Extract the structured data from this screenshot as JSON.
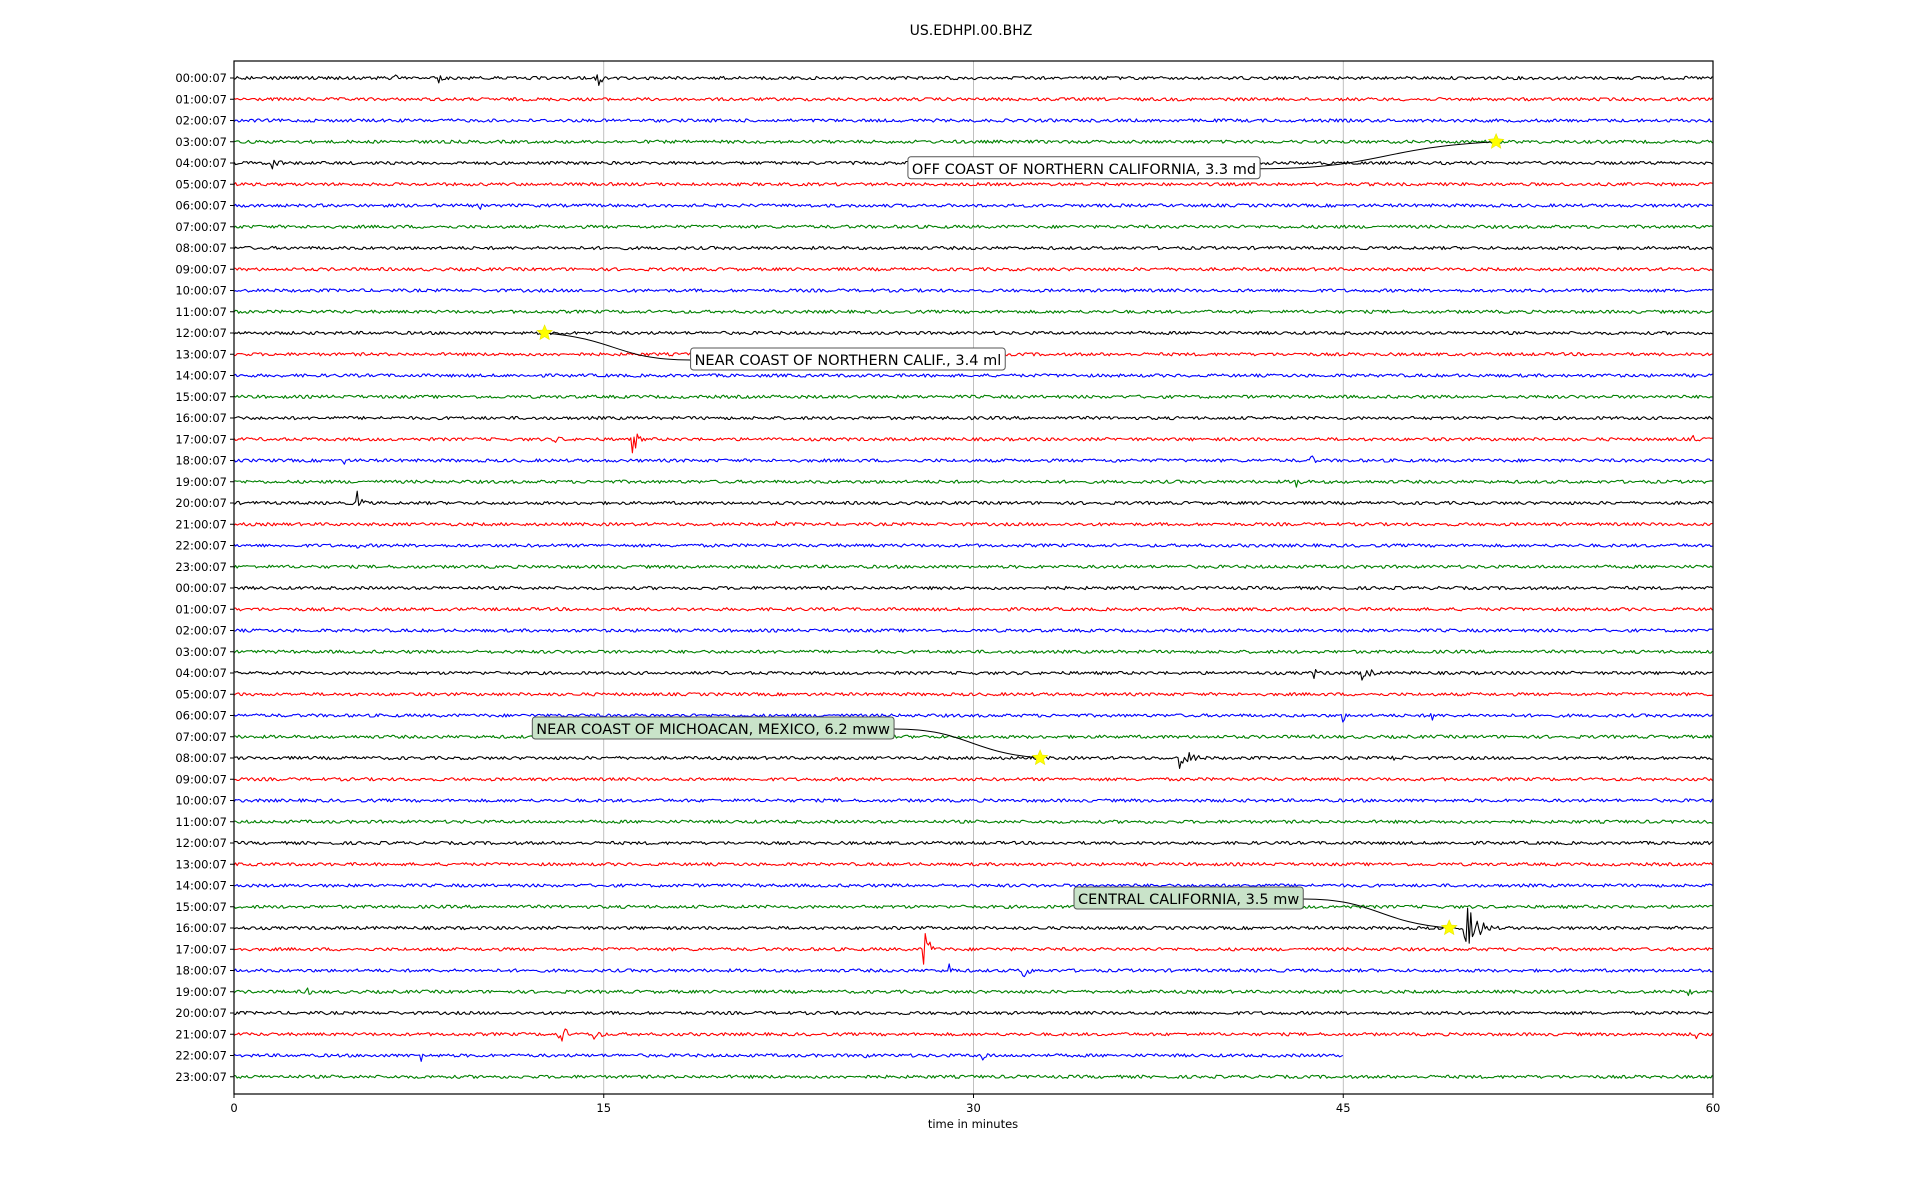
{
  "chart_data": {
    "type": "line",
    "title": "US.EDHPI.00.BHZ",
    "xlabel": "time in minutes",
    "ylabel": "",
    "xlim": [
      0,
      60
    ],
    "x_ticks": [
      "0",
      "15",
      "30",
      "45",
      "60"
    ],
    "x_tick_values": [
      0,
      15,
      30,
      45,
      60
    ],
    "grid": "vertical lines at 15, 30, 45",
    "trace_colors": [
      "#000000",
      "#ff0000",
      "#0000ff",
      "#008000"
    ],
    "row_labels": [
      "00:00:07",
      "01:00:07",
      "02:00:07",
      "03:00:07",
      "04:00:07",
      "05:00:07",
      "06:00:07",
      "07:00:07",
      "08:00:07",
      "09:00:07",
      "10:00:07",
      "11:00:07",
      "12:00:07",
      "13:00:07",
      "14:00:07",
      "15:00:07",
      "16:00:07",
      "17:00:07",
      "18:00:07",
      "19:00:07",
      "20:00:07",
      "21:00:07",
      "22:00:07",
      "23:00:07",
      "00:00:07",
      "01:00:07",
      "02:00:07",
      "03:00:07",
      "04:00:07",
      "05:00:07",
      "06:00:07",
      "07:00:07",
      "08:00:07",
      "09:00:07",
      "10:00:07",
      "11:00:07",
      "12:00:07",
      "13:00:07",
      "14:00:07",
      "15:00:07",
      "16:00:07",
      "17:00:07",
      "18:00:07",
      "19:00:07",
      "20:00:07",
      "21:00:07",
      "22:00:07",
      "23:00:07"
    ],
    "trace_end_minutes": {
      "46": 45
    },
    "bursts": [
      {
        "row": 0,
        "minute": 6.5,
        "amp": 5,
        "dur": 0.8
      },
      {
        "row": 0,
        "minute": 8.3,
        "amp": 6,
        "dur": 0.6
      },
      {
        "row": 0,
        "minute": 14.7,
        "amp": 11,
        "dur": 0.9
      },
      {
        "row": 4,
        "minute": 1.6,
        "amp": 9,
        "dur": 0.8
      },
      {
        "row": 6,
        "minute": 10.0,
        "amp": 4,
        "dur": 0.2
      },
      {
        "row": 17,
        "minute": 13.0,
        "amp": 4,
        "dur": 1.5
      },
      {
        "row": 17,
        "minute": 16.2,
        "amp": 14,
        "dur": 0.6
      },
      {
        "row": 17,
        "minute": 59.2,
        "amp": 6,
        "dur": 0.3
      },
      {
        "row": 18,
        "minute": 4.5,
        "amp": 4,
        "dur": 0.8
      },
      {
        "row": 18,
        "minute": 35.7,
        "amp": 5,
        "dur": 0.4
      },
      {
        "row": 18,
        "minute": 43.7,
        "amp": 6,
        "dur": 0.6
      },
      {
        "row": 19,
        "minute": 43.1,
        "amp": 11,
        "dur": 0.5
      },
      {
        "row": 20,
        "minute": 5.0,
        "amp": 15,
        "dur": 0.6
      },
      {
        "row": 21,
        "minute": 22.0,
        "amp": 4,
        "dur": 0.3
      },
      {
        "row": 22,
        "minute": 5.0,
        "amp": 4,
        "dur": 0.4
      },
      {
        "row": 22,
        "minute": 57.2,
        "amp": 4,
        "dur": 0.3
      },
      {
        "row": 28,
        "minute": 43.8,
        "amp": 6,
        "dur": 0.8
      },
      {
        "row": 28,
        "minute": 45.8,
        "amp": 13,
        "dur": 0.8
      },
      {
        "row": 30,
        "minute": 45.0,
        "amp": 8,
        "dur": 0.3
      },
      {
        "row": 30,
        "minute": 48.6,
        "amp": 9,
        "dur": 0.3
      },
      {
        "row": 32,
        "minute": 38.3,
        "amp": 12,
        "dur": 1.8
      },
      {
        "row": 32,
        "minute": 47.0,
        "amp": 3,
        "dur": 4.0
      },
      {
        "row": 40,
        "minute": 49.9,
        "amp": 28,
        "dur": 1.5
      },
      {
        "row": 41,
        "minute": 28.0,
        "amp": 22,
        "dur": 0.7
      },
      {
        "row": 42,
        "minute": 29.0,
        "amp": 8,
        "dur": 0.8
      },
      {
        "row": 42,
        "minute": 32.0,
        "amp": 14,
        "dur": 0.6
      },
      {
        "row": 43,
        "minute": 3.0,
        "amp": 4,
        "dur": 1.0
      },
      {
        "row": 43,
        "minute": 59.0,
        "amp": 4,
        "dur": 1.0
      },
      {
        "row": 45,
        "minute": 13.2,
        "amp": 14,
        "dur": 0.8
      },
      {
        "row": 45,
        "minute": 14.6,
        "amp": 14,
        "dur": 0.6
      },
      {
        "row": 45,
        "minute": 59.3,
        "amp": 10,
        "dur": 0.2
      },
      {
        "row": 46,
        "minute": 7.6,
        "amp": 6,
        "dur": 0.6
      },
      {
        "row": 46,
        "minute": 25.5,
        "amp": 8,
        "dur": 0.4
      },
      {
        "row": 46,
        "minute": 30.4,
        "amp": 10,
        "dur": 0.4
      }
    ],
    "events": [
      {
        "label": "OFF COAST OF NORTHERN CALIFORNIA, 3.3 md",
        "row": 3,
        "minute": 51.2,
        "box_color": "#ffffff"
      },
      {
        "label": "NEAR COAST OF NORTHERN CALIF., 3.4 ml",
        "row": 12,
        "minute": 12.6,
        "box_color": "#ffffff"
      },
      {
        "label": "NEAR COAST OF MICHOACAN, MEXICO, 6.2 mww",
        "row": 32,
        "minute": 32.7,
        "box_color": "#c9e3c9"
      },
      {
        "label": "CENTRAL CALIFORNIA, 3.5 mw",
        "row": 40,
        "minute": 49.3,
        "box_color": "#c9e3c9"
      }
    ]
  }
}
